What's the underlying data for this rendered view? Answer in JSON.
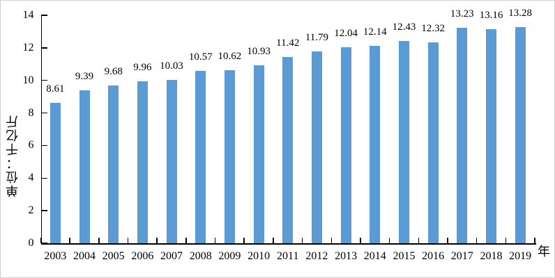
{
  "chart_data": {
    "type": "bar",
    "title": "",
    "categories": [
      "2003",
      "2004",
      "2005",
      "2006",
      "2007",
      "2008",
      "2009",
      "2010",
      "2011",
      "2012",
      "2013",
      "2014",
      "2015",
      "2016",
      "2017",
      "2018",
      "2019"
    ],
    "values": [
      8.61,
      9.39,
      9.68,
      9.96,
      10.03,
      10.57,
      10.62,
      10.93,
      11.42,
      11.79,
      12.04,
      12.14,
      12.43,
      12.32,
      13.23,
      13.16,
      13.28
    ],
    "value_label_decimals": 2,
    "ylabel": "单位：千亿斤",
    "xlabel": "年",
    "ylim": [
      0,
      14
    ],
    "yticks": [
      0,
      2,
      4,
      6,
      8,
      10,
      12,
      14
    ],
    "grid": false,
    "legend": false,
    "data_labels": true,
    "bar_color": "#5B9BD5",
    "axis_color": "#000000",
    "text_color": "#000000",
    "background": "#FFFFFF"
  }
}
